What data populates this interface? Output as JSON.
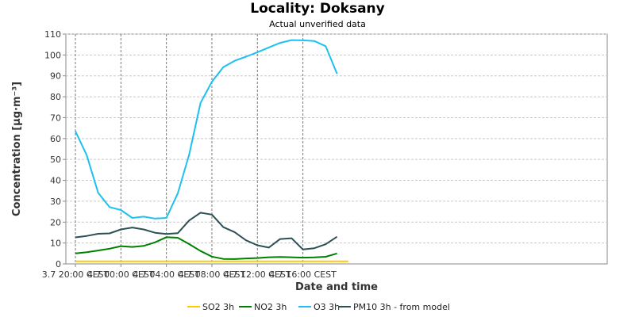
{
  "chart_data": {
    "type": "line",
    "title": "Locality: Doksany",
    "subtitle": "Actual unverified data",
    "xlabel": "Date and time",
    "ylabel": "Concentration [µg·m⁻³]",
    "ylim": [
      0,
      110
    ],
    "yticks": [
      0,
      10,
      20,
      30,
      40,
      50,
      60,
      70,
      80,
      90,
      100,
      110
    ],
    "x": [
      "3.7 20:00 CEST",
      "3.7 21:00",
      "3.7 22:00",
      "3.7 23:00",
      "4.7 00:00 CEST",
      "4.7 01:00",
      "4.7 02:00",
      "4.7 03:00",
      "4.7 04:00 CEST",
      "4.7 05:00",
      "4.7 06:00",
      "4.7 07:00",
      "4.7 08:00 CEST",
      "4.7 09:00",
      "4.7 10:00",
      "4.7 11:00",
      "4.7 12:00 CEST",
      "4.7 13:00",
      "4.7 14:00",
      "4.7 15:00",
      "4.7 16:00 CEST",
      "4.7 17:00",
      "4.7 18:00",
      "4.7 19:00",
      "4.7 20:00"
    ],
    "xtick_labels": [
      "3.7 20:00 CEST",
      "4.7 00:00 CEST",
      "4.7 04:00 CEST",
      "4.7 08:00 CEST",
      "4.7 12:00 CEST",
      "4.7 16:00 CEST"
    ],
    "xtick_index": [
      0,
      4,
      8,
      12,
      16,
      20
    ],
    "grid": true,
    "legend_position": "bottom",
    "series": [
      {
        "name": "SO2 3h",
        "color": "#ffcc00",
        "values": [
          1.2,
          1.2,
          1.2,
          1.2,
          1.2,
          1.2,
          1.2,
          1.2,
          1.2,
          1.2,
          1.2,
          1.2,
          1.2,
          1.2,
          1.2,
          1.2,
          1.2,
          1.2,
          1.2,
          1.2,
          1.2,
          1.2,
          1.2,
          1.2,
          1.2
        ]
      },
      {
        "name": "NO2 3h",
        "color": "#008000",
        "values": [
          5,
          5.6,
          6.4,
          7.3,
          8.5,
          8.1,
          8.6,
          10.3,
          12.8,
          12.5,
          9.5,
          6.2,
          3.5,
          2.4,
          2.3,
          2.6,
          2.8,
          3.2,
          3.3,
          3.2,
          3.0,
          3.1,
          3.4,
          5.0,
          null
        ]
      },
      {
        "name": "O3 3h",
        "color": "#1ec0f0",
        "values": [
          63.5,
          52,
          34,
          27.2,
          25.8,
          22,
          22.6,
          21.7,
          22,
          33.8,
          52.3,
          77,
          87.2,
          94.2,
          97.2,
          99.2,
          101.3,
          103.6,
          105.8,
          107.1,
          107.0,
          106.7,
          104.2,
          91.0,
          null
        ]
      },
      {
        "name": "PM10 3h - from model",
        "color": "#2d5055",
        "values": [
          12.7,
          13.4,
          14.4,
          14.6,
          16.5,
          17.4,
          16.5,
          14.9,
          14.3,
          14.7,
          20.8,
          24.5,
          23.6,
          17.6,
          15.2,
          11.3,
          8.9,
          7.8,
          11.9,
          12.3,
          6.9,
          7.5,
          9.4,
          13.0,
          null
        ]
      }
    ]
  }
}
